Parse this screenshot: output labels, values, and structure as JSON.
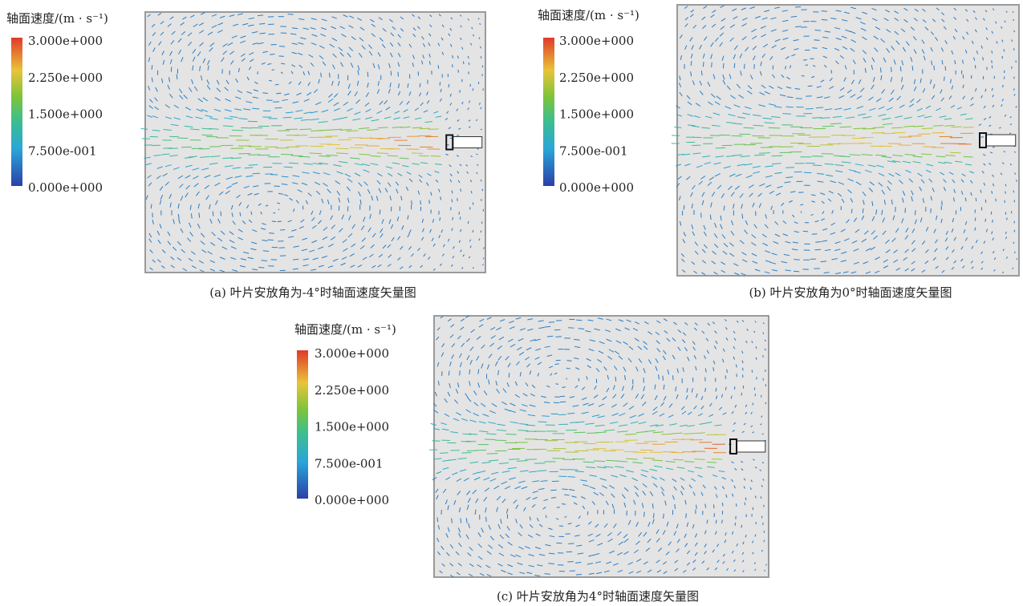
{
  "panels": [
    {
      "legend": {
        "title": "轴面速度/(m · s⁻¹)",
        "ticks": [
          "3.000e+000",
          "2.250e+000",
          "1.500e+000",
          "7.500e-001",
          "0.000e+000"
        ]
      },
      "caption": "(a) 叶片安放角为-4°时轴面速度矢量图"
    },
    {
      "legend": {
        "title": "轴面速度/(m · s⁻¹)",
        "ticks": [
          "3.000e+000",
          "2.250e+000",
          "1.500e+000",
          "7.500e-001",
          "0.000e+000"
        ]
      },
      "caption": "(b) 叶片安放角为0°时轴面速度矢量图"
    },
    {
      "legend": {
        "title": "轴面速度/(m · s⁻¹)",
        "ticks": [
          "3.000e+000",
          "2.250e+000",
          "1.500e+000",
          "7.500e-001",
          "0.000e+000"
        ]
      },
      "caption": "(c) 叶片安放角为4°时轴面速度矢量图"
    }
  ]
}
